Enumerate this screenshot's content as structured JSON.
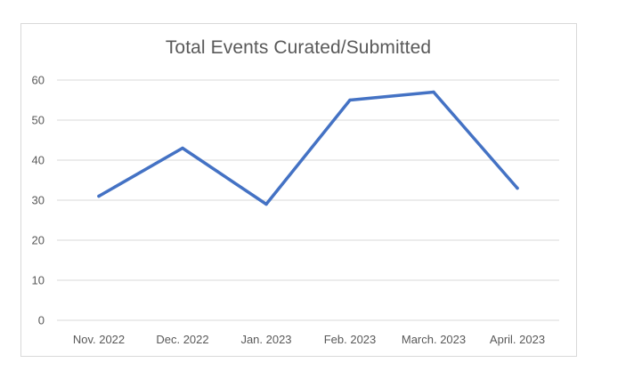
{
  "chart_data": {
    "type": "line",
    "title": "Total Events Curated/Submitted",
    "categories": [
      "Nov. 2022",
      "Dec. 2022",
      "Jan. 2023",
      "Feb. 2023",
      "March. 2023",
      "April. 2023"
    ],
    "series": [
      {
        "values": [
          31,
          43,
          29,
          55,
          57,
          33
        ]
      }
    ],
    "ylim": [
      0,
      60
    ],
    "yticks": [
      0,
      10,
      20,
      30,
      40,
      50,
      60
    ],
    "xlabel": "",
    "ylabel": "",
    "grid": true,
    "legend": "none",
    "line_color": "#4472c4",
    "grid_color": "#d9d9d9",
    "text_color": "#595959"
  }
}
